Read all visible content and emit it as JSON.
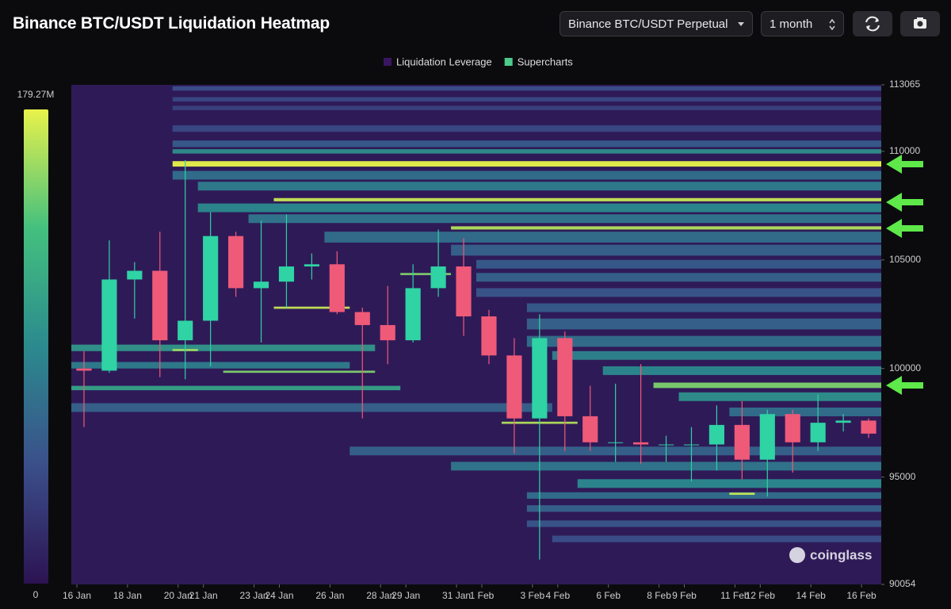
{
  "chart_data": {
    "type": "liquidation-heatmap",
    "title": "Binance BTC/USDT Liquidation Heatmap",
    "controls": {
      "market": "Binance BTC/USDT Perpetual",
      "range": "1 month"
    },
    "legend": [
      {
        "name": "Liquidation Leverage",
        "color": "#3a1660"
      },
      {
        "name": "Supercharts",
        "color": "#4ecb8a"
      }
    ],
    "watermark": "coinglass",
    "colorscale": [
      "#2c1352",
      "#3b4f8a",
      "#2b8a8e",
      "#44c07e",
      "#e9f24b"
    ],
    "background": "#2f1a58",
    "clim": [
      0,
      179.27
    ],
    "cticks": [
      0,
      {
        "value": 179.27,
        "label": "179.27M"
      }
    ],
    "ylim": [
      90054,
      113065
    ],
    "yticks": [
      113065,
      110000,
      105000,
      100000,
      95000,
      90054
    ],
    "x": [
      "16 Jan",
      "17 Jan",
      "18 Jan",
      "19 Jan",
      "20 Jan",
      "21 Jan",
      "22 Jan",
      "23 Jan",
      "24 Jan",
      "25 Jan",
      "26 Jan",
      "27 Jan",
      "28 Jan",
      "29 Jan",
      "30 Jan",
      "31 Jan",
      "1 Feb",
      "2 Feb",
      "3 Feb",
      "4 Feb",
      "5 Feb",
      "6 Feb",
      "7 Feb",
      "8 Feb",
      "9 Feb",
      "10 Feb",
      "11 Feb",
      "12 Feb",
      "13 Feb",
      "14 Feb",
      "15 Feb",
      "16 Feb"
    ],
    "xticks": [
      "16 Jan",
      "18 Jan",
      "20 Jan",
      "21 Jan",
      "23 Jan",
      "24 Jan",
      "26 Jan",
      "28 Jan",
      "29 Jan",
      "31 Jan",
      "1 Feb",
      "3 Feb",
      "4 Feb",
      "6 Feb",
      "8 Feb",
      "9 Feb",
      "11 Feb",
      "12 Feb",
      "14 Feb",
      "16 Feb"
    ],
    "candles": {
      "up_color": "#2fd3a4",
      "down_color": "#ef5a78",
      "open": [
        100000,
        99900,
        104100,
        104500,
        101300,
        102200,
        106100,
        103700,
        104000,
        104700,
        104800,
        102600,
        102000,
        101300,
        103700,
        104700,
        102400,
        100600,
        97700,
        101400,
        97800,
        96600,
        96600,
        96500,
        96500,
        96500,
        97400,
        95800,
        97900,
        96600,
        97500,
        97600
      ],
      "high": [
        100800,
        105900,
        104900,
        106300,
        109600,
        107200,
        106300,
        106800,
        107100,
        105300,
        105400,
        102800,
        103800,
        104800,
        106400,
        106000,
        102700,
        101400,
        102500,
        101700,
        99200,
        99300,
        100200,
        96900,
        97300,
        98300,
        98500,
        98100,
        98100,
        98800,
        97900,
        97700
      ],
      "low": [
        97300,
        99800,
        102300,
        99600,
        99500,
        100100,
        103300,
        101200,
        102800,
        104100,
        102500,
        97700,
        100200,
        101200,
        103300,
        101500,
        100200,
        96100,
        91200,
        96200,
        96200,
        95700,
        95600,
        95700,
        94800,
        95300,
        94900,
        94100,
        95200,
        96200,
        97100,
        96800
      ],
      "close": [
        99900,
        104100,
        104500,
        101300,
        102200,
        106100,
        103700,
        104000,
        104700,
        104800,
        102600,
        102000,
        101300,
        103700,
        104700,
        102400,
        100600,
        97700,
        101400,
        97800,
        96600,
        96600,
        96500,
        96500,
        96500,
        97400,
        95800,
        97900,
        96600,
        97500,
        97600,
        97000
      ]
    },
    "bands": [
      {
        "low": 112800,
        "high": 113000,
        "from": "20 Jan",
        "to": "16 Feb",
        "value": 45
      },
      {
        "low": 112300,
        "high": 112500,
        "from": "20 Jan",
        "to": "16 Feb",
        "value": 40
      },
      {
        "low": 111900,
        "high": 112100,
        "from": "20 Jan",
        "to": "16 Feb",
        "value": 35
      },
      {
        "low": 110900,
        "high": 111200,
        "from": "20 Jan",
        "to": "16 Feb",
        "value": 40
      },
      {
        "low": 110200,
        "high": 110500,
        "from": "20 Jan",
        "to": "16 Feb",
        "value": 55
      },
      {
        "low": 109900,
        "high": 110100,
        "from": "20 Jan",
        "to": "16 Feb",
        "value": 95
      },
      {
        "low": 108700,
        "high": 109100,
        "from": "20 Jan",
        "to": "16 Feb",
        "value": 70
      },
      {
        "low": 108200,
        "high": 108600,
        "from": "21 Jan",
        "to": "16 Feb",
        "value": 80
      },
      {
        "low": 107200,
        "high": 107600,
        "from": "21 Jan",
        "to": "16 Feb",
        "value": 90
      },
      {
        "low": 106700,
        "high": 107100,
        "from": "23 Jan",
        "to": "16 Feb",
        "value": 75
      },
      {
        "low": 105800,
        "high": 106300,
        "from": "26 Jan",
        "to": "16 Feb",
        "value": 70
      },
      {
        "low": 105200,
        "high": 105700,
        "from": "31 Jan",
        "to": "16 Feb",
        "value": 60
      },
      {
        "low": 104600,
        "high": 105000,
        "from": "1 Feb",
        "to": "16 Feb",
        "value": 55
      },
      {
        "low": 104000,
        "high": 104400,
        "from": "1 Feb",
        "to": "16 Feb",
        "value": 60
      },
      {
        "low": 103300,
        "high": 103700,
        "from": "1 Feb",
        "to": "16 Feb",
        "value": 50
      },
      {
        "low": 102600,
        "high": 103000,
        "from": "3 Feb",
        "to": "16 Feb",
        "value": 55
      },
      {
        "low": 101800,
        "high": 102300,
        "from": "3 Feb",
        "to": "16 Feb",
        "value": 60
      },
      {
        "low": 101000,
        "high": 101500,
        "from": "3 Feb",
        "to": "16 Feb",
        "value": 70
      },
      {
        "low": 100400,
        "high": 100800,
        "from": "4 Feb",
        "to": "16 Feb",
        "value": 85
      },
      {
        "low": 99700,
        "high": 100100,
        "from": "6 Feb",
        "to": "16 Feb",
        "value": 90
      },
      {
        "low": 98500,
        "high": 98900,
        "from": "9 Feb",
        "to": "16 Feb",
        "value": 95
      },
      {
        "low": 97800,
        "high": 98200,
        "from": "11 Feb",
        "to": "16 Feb",
        "value": 70
      },
      {
        "low": 100800,
        "high": 101100,
        "from": "16 Jan",
        "to": "27 Jan",
        "value": 100
      },
      {
        "low": 100000,
        "high": 100300,
        "from": "16 Jan",
        "to": "26 Jan",
        "value": 80
      },
      {
        "low": 99000,
        "high": 99200,
        "from": "16 Jan",
        "to": "28 Jan",
        "value": 110
      },
      {
        "low": 98000,
        "high": 98400,
        "from": "16 Jan",
        "to": "3 Feb",
        "value": 60
      },
      {
        "low": 96000,
        "high": 96400,
        "from": "27 Jan",
        "to": "16 Feb",
        "value": 60
      },
      {
        "low": 95300,
        "high": 95700,
        "from": "31 Jan",
        "to": "16 Feb",
        "value": 75
      },
      {
        "low": 94500,
        "high": 94900,
        "from": "5 Feb",
        "to": "16 Feb",
        "value": 90
      },
      {
        "low": 94000,
        "high": 94300,
        "from": "3 Feb",
        "to": "16 Feb",
        "value": 70
      },
      {
        "low": 93400,
        "high": 93700,
        "from": "3 Feb",
        "to": "16 Feb",
        "value": 60
      },
      {
        "low": 92700,
        "high": 93000,
        "from": "3 Feb",
        "to": "16 Feb",
        "value": 50
      },
      {
        "low": 92000,
        "high": 92300,
        "from": "4 Feb",
        "to": "16 Feb",
        "value": 45
      },
      {
        "low": 109300,
        "high": 109550,
        "from": "20 Jan",
        "to": "16 Feb",
        "value": 179.27
      },
      {
        "low": 107700,
        "high": 107850,
        "from": "24 Jan",
        "to": "16 Feb",
        "value": 170
      },
      {
        "low": 106400,
        "high": 106550,
        "from": "31 Jan",
        "to": "16 Feb",
        "value": 165
      },
      {
        "low": 99100,
        "high": 99350,
        "from": "8 Feb",
        "to": "16 Feb",
        "value": 150
      },
      {
        "low": 100800,
        "high": 100900,
        "from": "20 Jan",
        "to": "20 Jan",
        "value": 160
      },
      {
        "low": 102750,
        "high": 102850,
        "from": "24 Jan",
        "to": "26 Jan",
        "value": 170
      },
      {
        "low": 99800,
        "high": 99900,
        "from": "22 Jan",
        "to": "27 Jan",
        "value": 150
      },
      {
        "low": 97450,
        "high": 97550,
        "from": "2 Feb",
        "to": "4 Feb",
        "value": 165
      },
      {
        "low": 94180,
        "high": 94280,
        "from": "11 Feb",
        "to": "11 Feb",
        "value": 170
      },
      {
        "low": 104300,
        "high": 104400,
        "from": "29 Jan",
        "to": "30 Jan",
        "value": 150
      }
    ]
  }
}
